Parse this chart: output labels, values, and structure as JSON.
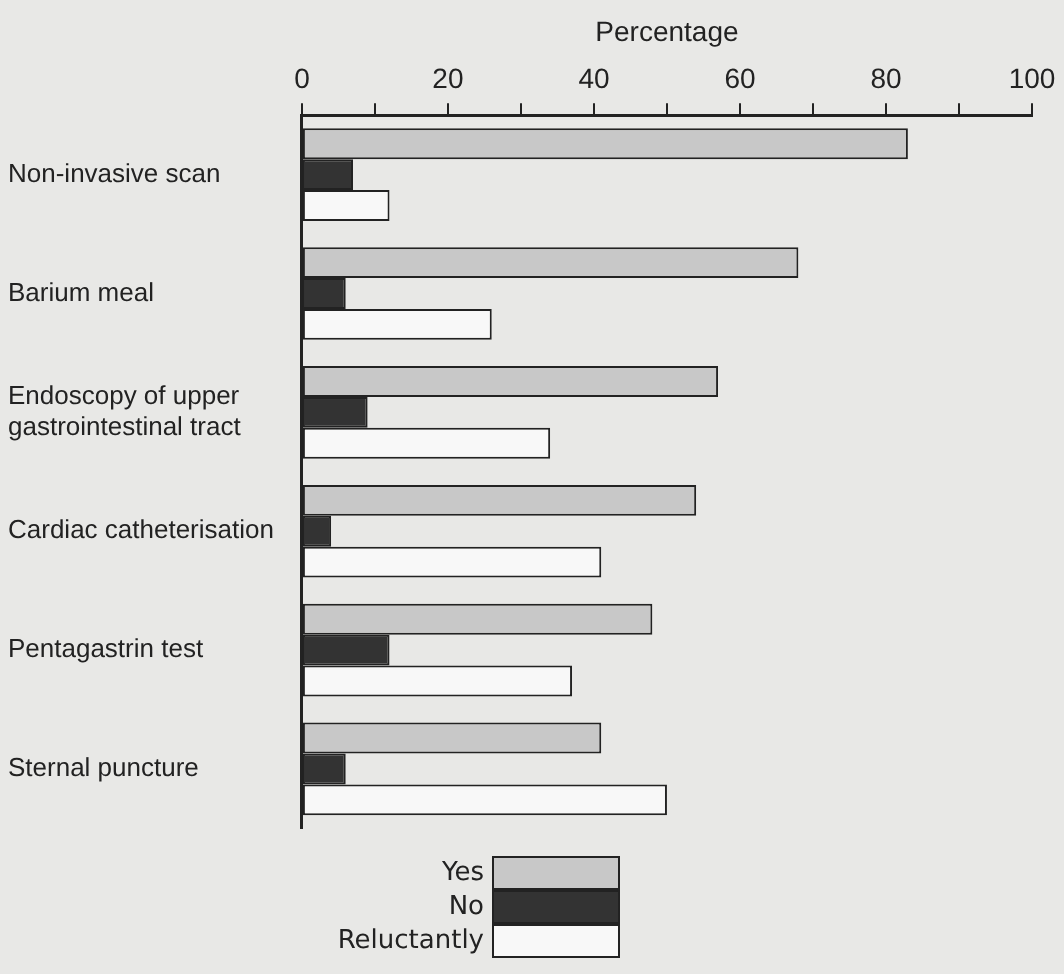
{
  "chart_data": {
    "type": "bar",
    "orientation": "horizontal",
    "xlabel": "Percentage",
    "categories": [
      "Non-invasive scan",
      "Barium meal",
      "Endoscopy of upper gastrointestinal tract",
      "Cardiac catheterisation",
      "Pentagastrin test",
      "Sternal puncture"
    ],
    "series": [
      {
        "name": "Yes",
        "color": "#c8c8c8",
        "values": [
          83,
          68,
          57,
          54,
          48,
          41
        ]
      },
      {
        "name": "No",
        "color": "#333333",
        "values": [
          7,
          6,
          9,
          4,
          12,
          6
        ]
      },
      {
        "name": "Reluctantly",
        "color": "#f8f8f8",
        "values": [
          12,
          26,
          34,
          41,
          37,
          50
        ]
      }
    ],
    "xlim": [
      0,
      100
    ],
    "xticks": [
      0,
      {
        "value": 10,
        "label": null
      },
      20,
      {
        "value": 30,
        "label": null
      },
      40,
      {
        "value": 50,
        "label": null
      },
      60,
      {
        "value": 70,
        "label": null
      },
      80,
      {
        "value": 90,
        "label": null
      },
      100
    ],
    "grid": false,
    "legend": "bottom"
  }
}
